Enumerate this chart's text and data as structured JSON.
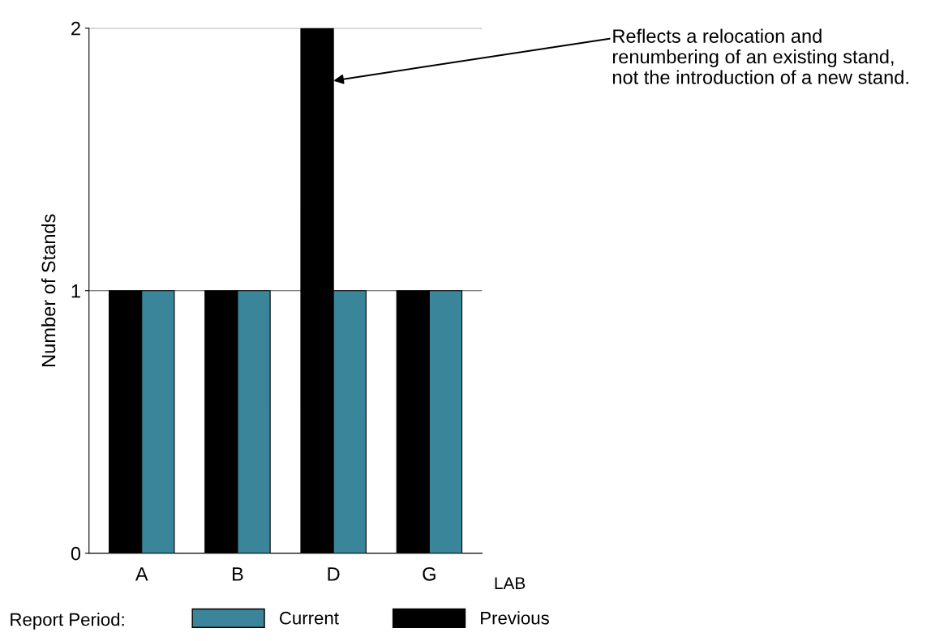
{
  "chart_data": {
    "type": "bar",
    "categories": [
      "A",
      "B",
      "D",
      "G"
    ],
    "series": [
      {
        "name": "Previous",
        "color": "#000000",
        "values": [
          1,
          1,
          2,
          1
        ]
      },
      {
        "name": "Current",
        "color": "#3a8599",
        "values": [
          1,
          1,
          1,
          1
        ]
      }
    ],
    "xlabel": "LAB",
    "ylabel": "Number of Stands",
    "legend_title": "Report Period:",
    "ylim": [
      0,
      2
    ],
    "yticks": [
      0,
      1,
      2
    ],
    "grid": "y",
    "legend": "bottom",
    "annotations": [
      {
        "text": "Reflects a relocation and renumbering of an existing stand, not the introduction of a new stand.",
        "x": "D",
        "y": 1.8
      }
    ]
  }
}
